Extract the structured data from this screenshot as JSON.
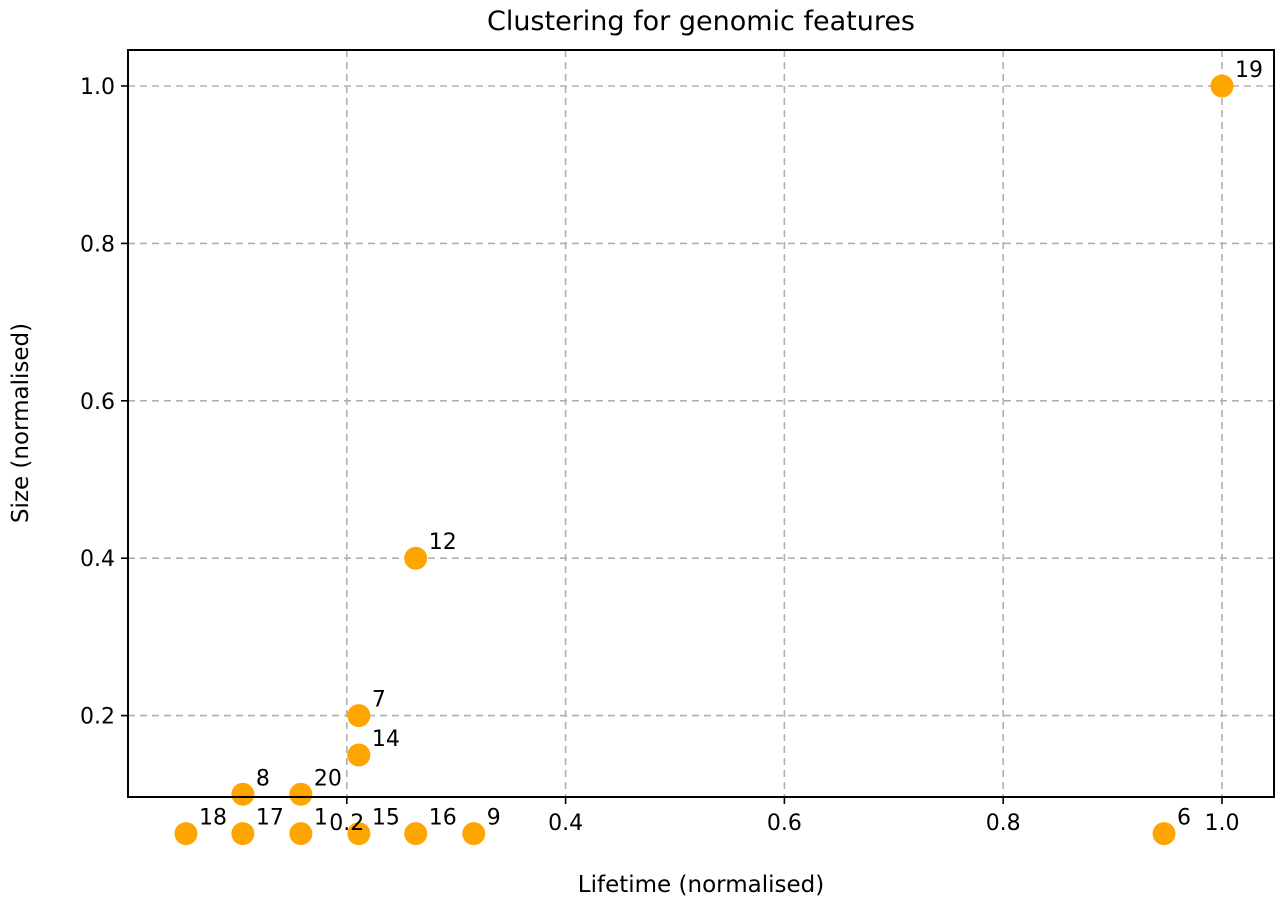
{
  "chart_data": {
    "type": "scatter",
    "title": "Clustering for genomic features",
    "xlabel": "Lifetime (normalised)",
    "ylabel": "Size (normalised)",
    "xlim": [
      0.0,
      1.05
    ],
    "ylim": [
      0.0,
      1.05
    ],
    "xticks": [
      0.2,
      0.4,
      0.6,
      0.8,
      1.0
    ],
    "xtick_labels": [
      "0.2",
      "0.4",
      "0.6",
      "0.8",
      "1.0"
    ],
    "yticks": [
      0.2,
      0.4,
      0.6,
      0.8,
      1.0
    ],
    "ytick_labels": [
      "0.2",
      "0.4",
      "0.6",
      "0.8",
      "1.0"
    ],
    "grid": true,
    "marker_color": "#FFA500",
    "points": [
      {
        "label": "18",
        "x": 0.053,
        "y": 0.05
      },
      {
        "label": "17",
        "x": 0.105,
        "y": 0.05
      },
      {
        "label": "8",
        "x": 0.105,
        "y": 0.1
      },
      {
        "label": "1",
        "x": 0.158,
        "y": 0.05
      },
      {
        "label": "20",
        "x": 0.158,
        "y": 0.1
      },
      {
        "label": "15",
        "x": 0.211,
        "y": 0.05
      },
      {
        "label": "14",
        "x": 0.211,
        "y": 0.15
      },
      {
        "label": "7",
        "x": 0.211,
        "y": 0.2
      },
      {
        "label": "16",
        "x": 0.263,
        "y": 0.05
      },
      {
        "label": "12",
        "x": 0.263,
        "y": 0.4
      },
      {
        "label": "9",
        "x": 0.316,
        "y": 0.05
      },
      {
        "label": "6",
        "x": 0.947,
        "y": 0.05
      },
      {
        "label": "19",
        "x": 1.0,
        "y": 1.0
      }
    ]
  }
}
